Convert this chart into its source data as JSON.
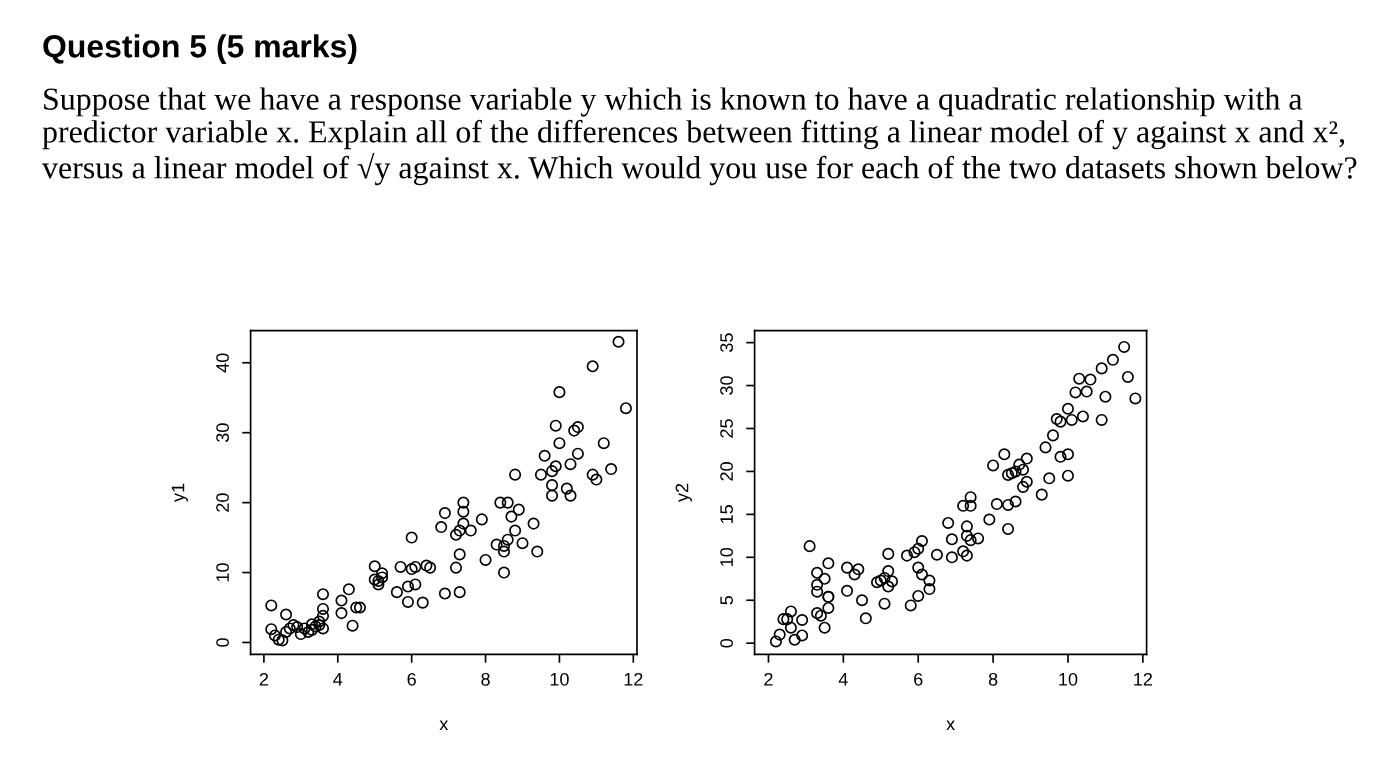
{
  "chart_data": [
    {
      "type": "scatter",
      "title": "Question 5 (5 marks)",
      "subtitle": "Suppose that we have a response variable y which is known to have a quadratic relationship with a predictor variable x. Explain all of the differences between fitting a linear model of y against x and x², versus a linear model of √y against x. Which would you use for each of the two datasets shown below?",
      "xlabel": "x",
      "ylabel": "y1",
      "marker": "circle",
      "grid": false,
      "legend": false,
      "xlim": [
        1.64,
        12.1
      ],
      "ylim": [
        -1.7,
        44.6
      ],
      "xticks": [
        2,
        4,
        6,
        8,
        10,
        12
      ],
      "yticks": [
        0,
        10,
        20,
        30,
        40
      ],
      "x": [
        2.2,
        2.2,
        2.3,
        2.4,
        2.5,
        2.6,
        2.6,
        2.7,
        2.8,
        2.9,
        3.0,
        3.1,
        3.2,
        3.3,
        3.3,
        3.4,
        3.5,
        3.5,
        3.6,
        3.6,
        3.6,
        3.6,
        4.1,
        4.1,
        4.3,
        4.4,
        4.5,
        4.6,
        5.0,
        5.0,
        5.1,
        5.2,
        5.2,
        5.1,
        5.6,
        5.7,
        5.9,
        6.0,
        6.0,
        5.9,
        6.1,
        6.1,
        6.3,
        6.4,
        6.5,
        6.8,
        6.9,
        6.9,
        7.2,
        7.2,
        7.3,
        7.3,
        7.3,
        7.4,
        7.4,
        7.4,
        7.6,
        7.9,
        8.0,
        8.3,
        8.4,
        8.5,
        8.5,
        8.5,
        8.6,
        8.6,
        8.7,
        8.8,
        8.8,
        8.9,
        9.0,
        9.3,
        9.4,
        9.5,
        9.6,
        9.8,
        9.8,
        9.8,
        9.9,
        9.9,
        10.0,
        10.0,
        10.2,
        10.3,
        10.3,
        10.4,
        10.5,
        10.5,
        10.9,
        10.9,
        11.0,
        11.2,
        11.4,
        11.6,
        11.8
      ],
      "values": [
        1.9,
        5.3,
        1.0,
        0.4,
        0.3,
        4.0,
        1.5,
        2.0,
        2.5,
        2.2,
        1.2,
        2.0,
        1.5,
        2.6,
        1.8,
        2.3,
        2.5,
        3.0,
        2.0,
        3.8,
        4.8,
        6.9,
        6.0,
        4.2,
        7.6,
        2.4,
        5.0,
        5.0,
        10.9,
        9.0,
        8.3,
        9.9,
        9.3,
        8.8,
        7.2,
        10.8,
        5.8,
        10.5,
        15.0,
        8.0,
        8.3,
        10.8,
        5.7,
        11.0,
        10.7,
        16.5,
        7.0,
        18.5,
        10.7,
        15.4,
        16.0,
        12.6,
        7.2,
        18.7,
        17.0,
        20.0,
        16.0,
        17.6,
        11.8,
        14.0,
        20.0,
        10.0,
        13.0,
        13.8,
        14.7,
        20.0,
        18.0,
        24.0,
        16.0,
        19.0,
        14.2,
        17.0,
        13.0,
        24.0,
        26.7,
        21.0,
        22.5,
        24.5,
        25.2,
        31.0,
        28.5,
        35.8,
        22.0,
        25.5,
        21.0,
        30.3,
        30.8,
        27.0,
        39.5,
        24.0,
        23.3,
        28.5,
        24.8,
        43.0,
        33.5
      ],
      "color": "#000000"
    },
    {
      "type": "scatter",
      "xlabel": "x",
      "ylabel": "y2",
      "marker": "circle",
      "grid": false,
      "legend": false,
      "xlim": [
        1.63,
        12.1
      ],
      "ylim": [
        -1.3,
        36.4
      ],
      "xticks": [
        2,
        4,
        6,
        8,
        10,
        12
      ],
      "yticks": [
        0,
        5,
        10,
        15,
        20,
        25,
        30,
        35
      ],
      "x": [
        2.2,
        2.3,
        2.4,
        2.5,
        2.6,
        2.6,
        2.7,
        2.9,
        2.9,
        3.1,
        3.3,
        3.3,
        3.3,
        3.3,
        3.4,
        3.5,
        3.5,
        3.6,
        3.6,
        3.6,
        3.6,
        4.1,
        4.1,
        4.3,
        4.4,
        4.5,
        4.6,
        4.9,
        5.0,
        5.1,
        5.1,
        5.2,
        5.2,
        5.2,
        5.3,
        5.7,
        5.8,
        5.9,
        6.0,
        6.0,
        6.0,
        6.1,
        6.1,
        6.3,
        6.3,
        6.5,
        6.8,
        6.9,
        6.9,
        7.2,
        7.2,
        7.3,
        7.3,
        7.3,
        7.4,
        7.4,
        7.4,
        7.6,
        7.9,
        8.0,
        8.1,
        8.3,
        8.4,
        8.4,
        8.4,
        8.5,
        8.6,
        8.6,
        8.7,
        8.8,
        8.8,
        8.9,
        8.9,
        9.3,
        9.4,
        9.5,
        9.6,
        9.7,
        9.8,
        9.8,
        10.0,
        10.0,
        10.0,
        10.1,
        10.2,
        10.3,
        10.4,
        10.5,
        10.6,
        10.9,
        10.9,
        11.0,
        11.2,
        11.5,
        11.6,
        11.8
      ],
      "values": [
        0.2,
        1.0,
        2.8,
        2.8,
        1.8,
        3.7,
        0.4,
        0.9,
        2.7,
        11.3,
        8.2,
        6.8,
        6.0,
        3.5,
        3.2,
        7.5,
        1.8,
        5.4,
        5.4,
        9.3,
        4.1,
        8.8,
        6.1,
        8.0,
        8.6,
        5.0,
        2.9,
        7.1,
        7.3,
        4.6,
        7.6,
        10.4,
        8.4,
        6.6,
        7.2,
        10.2,
        4.4,
        10.6,
        8.8,
        5.5,
        11.0,
        8.0,
        11.9,
        6.3,
        7.3,
        10.3,
        14.0,
        12.1,
        10.0,
        10.7,
        16.0,
        13.6,
        12.5,
        10.2,
        17.0,
        12.0,
        16.0,
        12.2,
        14.4,
        20.7,
        16.2,
        22.0,
        16.1,
        13.3,
        19.6,
        19.8,
        16.5,
        20.0,
        20.8,
        18.2,
        20.2,
        18.8,
        21.5,
        17.3,
        22.8,
        19.2,
        24.2,
        26.1,
        21.7,
        25.8,
        27.3,
        19.5,
        22.0,
        26.0,
        29.2,
        30.8,
        26.4,
        29.3,
        30.7,
        32.0,
        26.0,
        28.7,
        33.0,
        34.5,
        31.0,
        28.5
      ],
      "color": "#000000"
    }
  ]
}
